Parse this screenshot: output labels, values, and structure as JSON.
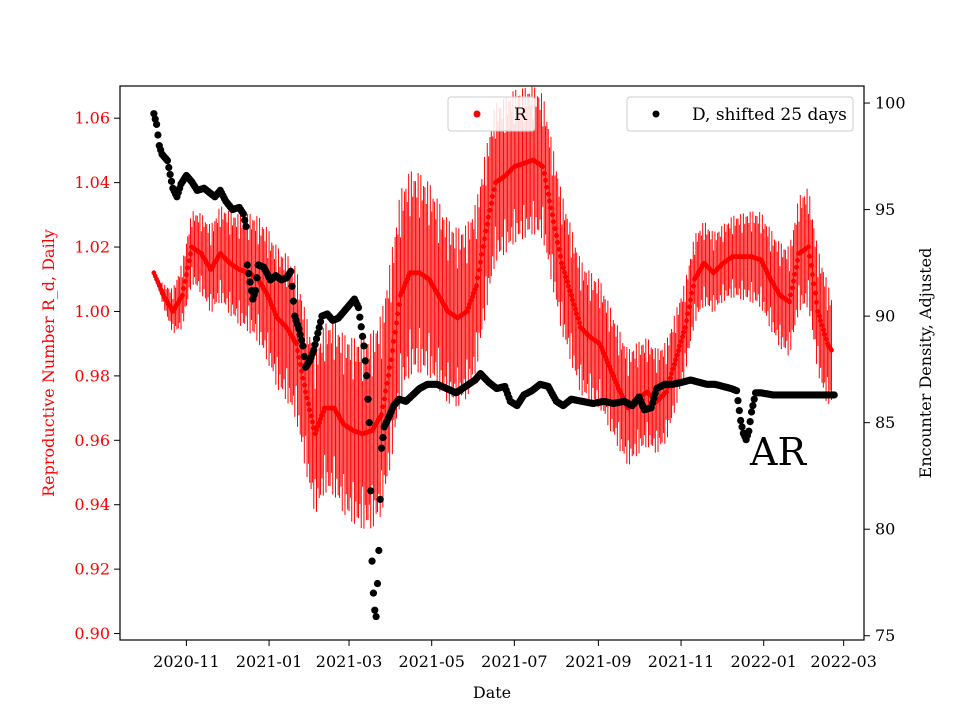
{
  "chart_data": {
    "type": "scatter",
    "title": "",
    "xlabel": "Date",
    "ylabel_left": "Reproductive Number R_d, Daily",
    "ylabel_right": "Encounter Density, Adjusted",
    "x_range": [
      "2020-09-13",
      "2022-03-16"
    ],
    "ylim_left": [
      0.898,
      1.07
    ],
    "ylim_right": [
      74.8,
      100.8
    ],
    "x_ticks": [
      "2020-11",
      "2021-01",
      "2021-03",
      "2021-05",
      "2021-07",
      "2021-09",
      "2021-11",
      "2022-01",
      "2022-03"
    ],
    "y_ticks_left": [
      "0.90",
      "0.92",
      "0.94",
      "0.96",
      "0.98",
      "1.00",
      "1.02",
      "1.04",
      "1.06"
    ],
    "y_ticks_right": [
      "75",
      "80",
      "85",
      "90",
      "95",
      "100"
    ],
    "colors": {
      "R": "#ff0000",
      "D": "#000000"
    },
    "annotation": "AR",
    "legend": {
      "R_label": "R",
      "D_label": "D, shifted 25 days",
      "placement": "top-right"
    },
    "series": [
      {
        "name": "R",
        "axis": "left",
        "color": "#ff0000",
        "marker": "dot",
        "ci_halfwidth": [
          [
            0,
            0.0
          ],
          [
            20,
            0.01
          ],
          [
            90,
            0.022
          ],
          [
            180,
            0.033
          ],
          [
            250,
            0.025
          ],
          [
            330,
            0.02
          ],
          [
            420,
            0.012
          ],
          [
            495,
            0.02
          ],
          [
            520,
            0.006
          ]
        ],
        "points": [
          [
            "2020-10-08",
            1.012
          ],
          [
            "2020-10-15",
            1.005
          ],
          [
            "2020-10-22",
            1.0
          ],
          [
            "2020-10-29",
            1.005
          ],
          [
            "2020-11-05",
            1.02
          ],
          [
            "2020-11-12",
            1.018
          ],
          [
            "2020-11-19",
            1.013
          ],
          [
            "2020-11-26",
            1.018
          ],
          [
            "2020-12-03",
            1.015
          ],
          [
            "2020-12-10",
            1.013
          ],
          [
            "2020-12-17",
            1.012
          ],
          [
            "2020-12-24",
            1.01
          ],
          [
            "2020-12-31",
            1.005
          ],
          [
            "2021-01-07",
            0.998
          ],
          [
            "2021-01-14",
            0.995
          ],
          [
            "2021-01-21",
            0.99
          ],
          [
            "2021-01-28",
            0.975
          ],
          [
            "2021-02-04",
            0.962
          ],
          [
            "2021-02-11",
            0.97
          ],
          [
            "2021-02-18",
            0.97
          ],
          [
            "2021-02-25",
            0.965
          ],
          [
            "2021-03-04",
            0.963
          ],
          [
            "2021-03-11",
            0.962
          ],
          [
            "2021-03-18",
            0.963
          ],
          [
            "2021-03-25",
            0.968
          ],
          [
            "2021-04-01",
            0.985
          ],
          [
            "2021-04-08",
            1.005
          ],
          [
            "2021-04-15",
            1.012
          ],
          [
            "2021-04-22",
            1.012
          ],
          [
            "2021-04-29",
            1.01
          ],
          [
            "2021-05-06",
            1.005
          ],
          [
            "2021-05-13",
            1.0
          ],
          [
            "2021-05-20",
            0.998
          ],
          [
            "2021-05-27",
            1.0
          ],
          [
            "2021-06-03",
            1.008
          ],
          [
            "2021-06-10",
            1.025
          ],
          [
            "2021-06-17",
            1.04
          ],
          [
            "2021-06-24",
            1.042
          ],
          [
            "2021-07-01",
            1.045
          ],
          [
            "2021-07-08",
            1.046
          ],
          [
            "2021-07-15",
            1.047
          ],
          [
            "2021-07-22",
            1.045
          ],
          [
            "2021-07-29",
            1.03
          ],
          [
            "2021-08-05",
            1.015
          ],
          [
            "2021-08-12",
            1.005
          ],
          [
            "2021-08-19",
            0.995
          ],
          [
            "2021-08-26",
            0.992
          ],
          [
            "2021-09-02",
            0.99
          ],
          [
            "2021-09-09",
            0.983
          ],
          [
            "2021-09-16",
            0.976
          ],
          [
            "2021-09-23",
            0.97
          ],
          [
            "2021-09-30",
            0.973
          ],
          [
            "2021-10-07",
            0.975
          ],
          [
            "2021-10-14",
            0.972
          ],
          [
            "2021-10-21",
            0.975
          ],
          [
            "2021-10-28",
            0.985
          ],
          [
            "2021-11-04",
            0.995
          ],
          [
            "2021-11-11",
            1.01
          ],
          [
            "2021-11-18",
            1.015
          ],
          [
            "2021-11-25",
            1.012
          ],
          [
            "2021-12-02",
            1.015
          ],
          [
            "2021-12-09",
            1.017
          ],
          [
            "2021-12-16",
            1.017
          ],
          [
            "2021-12-23",
            1.017
          ],
          [
            "2021-12-30",
            1.016
          ],
          [
            "2022-01-06",
            1.01
          ],
          [
            "2022-01-13",
            1.005
          ],
          [
            "2022-01-20",
            1.003
          ],
          [
            "2022-01-27",
            1.018
          ],
          [
            "2022-02-03",
            1.02
          ],
          [
            "2022-02-10",
            1.0
          ],
          [
            "2022-02-17",
            0.99
          ],
          [
            "2022-02-20",
            0.988
          ]
        ]
      },
      {
        "name": "D, shifted 25 days",
        "axis": "right",
        "color": "#000000",
        "marker": "dot",
        "points": [
          [
            "2020-10-08",
            99.5
          ],
          [
            "2020-10-10",
            99.0
          ],
          [
            "2020-10-12",
            98.0
          ],
          [
            "2020-10-14",
            97.6
          ],
          [
            "2020-10-18",
            97.3
          ],
          [
            "2020-10-22",
            96.0
          ],
          [
            "2020-10-25",
            95.6
          ],
          [
            "2020-10-28",
            96.2
          ],
          [
            "2020-11-01",
            96.6
          ],
          [
            "2020-11-05",
            96.3
          ],
          [
            "2020-11-09",
            95.9
          ],
          [
            "2020-11-14",
            96.0
          ],
          [
            "2020-11-18",
            95.8
          ],
          [
            "2020-11-22",
            95.6
          ],
          [
            "2020-11-26",
            95.9
          ],
          [
            "2020-11-30",
            95.4
          ],
          [
            "2020-12-05",
            95.0
          ],
          [
            "2020-12-10",
            95.1
          ],
          [
            "2020-12-13",
            94.8
          ],
          [
            "2020-12-15",
            94.2
          ],
          [
            "2020-12-16",
            92.4
          ],
          [
            "2020-12-18",
            91.6
          ],
          [
            "2020-12-20",
            90.8
          ],
          [
            "2020-12-22",
            91.2
          ],
          [
            "2020-12-24",
            92.4
          ],
          [
            "2020-12-28",
            92.3
          ],
          [
            "2021-01-02",
            91.7
          ],
          [
            "2021-01-06",
            91.9
          ],
          [
            "2021-01-10",
            91.7
          ],
          [
            "2021-01-14",
            91.8
          ],
          [
            "2021-01-17",
            92.1
          ],
          [
            "2021-01-20",
            90.0
          ],
          [
            "2021-01-23",
            89.4
          ],
          [
            "2021-01-26",
            88.6
          ],
          [
            "2021-01-28",
            87.6
          ],
          [
            "2021-01-31",
            87.9
          ],
          [
            "2021-02-03",
            88.4
          ],
          [
            "2021-02-06",
            89.2
          ],
          [
            "2021-02-09",
            90.0
          ],
          [
            "2021-02-13",
            90.1
          ],
          [
            "2021-02-17",
            89.8
          ],
          [
            "2021-02-21",
            89.9
          ],
          [
            "2021-02-25",
            90.2
          ],
          [
            "2021-03-01",
            90.5
          ],
          [
            "2021-03-05",
            90.8
          ],
          [
            "2021-03-08",
            90.4
          ],
          [
            "2021-03-10",
            89.5
          ],
          [
            "2021-03-12",
            88.6
          ],
          [
            "2021-03-14",
            87.2
          ],
          [
            "2021-03-16",
            85.0
          ],
          [
            "2021-03-17",
            81.8
          ],
          [
            "2021-03-18",
            78.5
          ],
          [
            "2021-03-19",
            77.0
          ],
          [
            "2021-03-20",
            76.2
          ],
          [
            "2021-03-21",
            75.9
          ],
          [
            "2021-03-23",
            79.0
          ],
          [
            "2021-03-25",
            83.8
          ],
          [
            "2021-03-27",
            84.8
          ],
          [
            "2021-03-30",
            85.2
          ],
          [
            "2021-04-03",
            85.8
          ],
          [
            "2021-04-07",
            86.1
          ],
          [
            "2021-04-12",
            86.0
          ],
          [
            "2021-04-17",
            86.3
          ],
          [
            "2021-04-22",
            86.6
          ],
          [
            "2021-04-28",
            86.8
          ],
          [
            "2021-05-05",
            86.8
          ],
          [
            "2021-05-12",
            86.6
          ],
          [
            "2021-05-19",
            86.4
          ],
          [
            "2021-05-26",
            86.7
          ],
          [
            "2021-06-02",
            87.0
          ],
          [
            "2021-06-06",
            87.3
          ],
          [
            "2021-06-12",
            86.9
          ],
          [
            "2021-06-18",
            86.6
          ],
          [
            "2021-06-24",
            86.7
          ],
          [
            "2021-06-28",
            86.0
          ],
          [
            "2021-07-03",
            85.8
          ],
          [
            "2021-07-08",
            86.3
          ],
          [
            "2021-07-14",
            86.5
          ],
          [
            "2021-07-20",
            86.8
          ],
          [
            "2021-07-26",
            86.7
          ],
          [
            "2021-08-01",
            86.0
          ],
          [
            "2021-08-06",
            85.8
          ],
          [
            "2021-08-12",
            86.1
          ],
          [
            "2021-08-20",
            86.0
          ],
          [
            "2021-08-28",
            85.9
          ],
          [
            "2021-09-05",
            86.0
          ],
          [
            "2021-09-12",
            85.9
          ],
          [
            "2021-09-20",
            86.0
          ],
          [
            "2021-09-26",
            85.8
          ],
          [
            "2021-10-01",
            86.2
          ],
          [
            "2021-10-05",
            85.6
          ],
          [
            "2021-10-10",
            85.7
          ],
          [
            "2021-10-14",
            86.6
          ],
          [
            "2021-10-20",
            86.8
          ],
          [
            "2021-10-26",
            86.8
          ],
          [
            "2021-11-02",
            86.9
          ],
          [
            "2021-11-08",
            87.0
          ],
          [
            "2021-11-14",
            86.9
          ],
          [
            "2021-11-20",
            86.8
          ],
          [
            "2021-11-26",
            86.8
          ],
          [
            "2021-12-02",
            86.7
          ],
          [
            "2021-12-08",
            86.6
          ],
          [
            "2021-12-12",
            86.5
          ],
          [
            "2021-12-15",
            85.1
          ],
          [
            "2021-12-17",
            84.5
          ],
          [
            "2021-12-19",
            84.2
          ],
          [
            "2021-12-21",
            84.6
          ],
          [
            "2021-12-23",
            85.5
          ],
          [
            "2021-12-26",
            86.4
          ],
          [
            "2021-12-30",
            86.4
          ],
          [
            "2022-01-08",
            86.3
          ],
          [
            "2022-01-18",
            86.3
          ],
          [
            "2022-01-28",
            86.3
          ],
          [
            "2022-02-07",
            86.3
          ],
          [
            "2022-02-17",
            86.3
          ],
          [
            "2022-02-22",
            86.3
          ]
        ]
      }
    ]
  }
}
